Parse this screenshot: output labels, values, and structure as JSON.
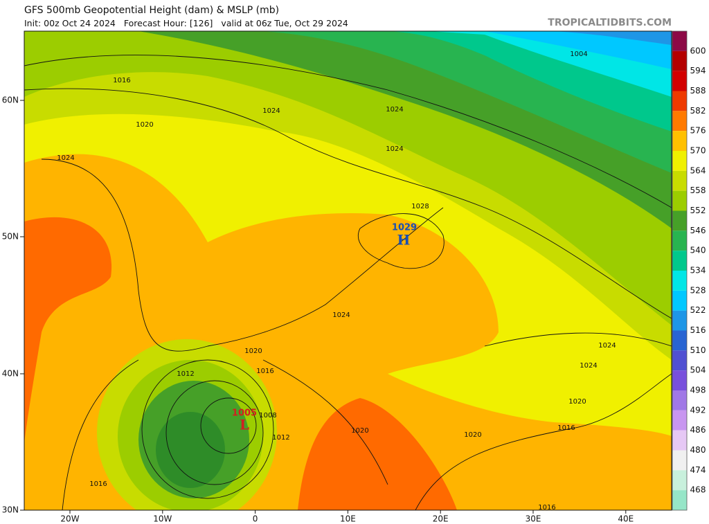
{
  "header": {
    "title": "GFS 500mb Geopotential Height (dam) & MSLP (mb)",
    "init": "Init: 00z Oct 24 2024",
    "forecast_hour": "Forecast Hour: [126]",
    "valid": "valid at 06z Tue, Oct 29 2024",
    "watermark": "TROPICALTIDBITS.COM"
  },
  "latitude_labels": [
    "60N",
    "50N",
    "40N",
    "30N"
  ],
  "longitude_labels": [
    "20W",
    "10W",
    "0",
    "10E",
    "20E",
    "30E",
    "40E"
  ],
  "contour_labels": [
    "1004",
    "1016",
    "1024",
    "1024",
    "1020",
    "1024",
    "1024",
    "1028",
    "1024",
    "1020",
    "1016",
    "1012",
    "1008",
    "1012",
    "1020",
    "1020",
    "1016",
    "1020",
    "1024",
    "1024",
    "1016",
    "1016"
  ],
  "pressure_centers": [
    {
      "value": "1029",
      "symbol": "H"
    },
    {
      "value": "1005",
      "symbol": "L"
    }
  ],
  "colorbar": {
    "cap_color": "#8c0a46",
    "levels": [
      {
        "label": "600",
        "color": "#b40000"
      },
      {
        "label": "594",
        "color": "#d20000"
      },
      {
        "label": "588",
        "color": "#ee3a00"
      },
      {
        "label": "582",
        "color": "#ff7a00"
      },
      {
        "label": "576",
        "color": "#ffc000"
      },
      {
        "label": "570",
        "color": "#f0f000"
      },
      {
        "label": "564",
        "color": "#c8dc00"
      },
      {
        "label": "558",
        "color": "#9ccd00"
      },
      {
        "label": "552",
        "color": "#46a028"
      },
      {
        "label": "546",
        "color": "#28b450"
      },
      {
        "label": "540",
        "color": "#00c88c"
      },
      {
        "label": "534",
        "color": "#00e6e6"
      },
      {
        "label": "528",
        "color": "#00c8ff"
      },
      {
        "label": "522",
        "color": "#1e96e6"
      },
      {
        "label": "516",
        "color": "#2864d2"
      },
      {
        "label": "510",
        "color": "#5050d2"
      },
      {
        "label": "504",
        "color": "#7850dc"
      },
      {
        "label": "498",
        "color": "#a078e6"
      },
      {
        "label": "492",
        "color": "#c896f0"
      },
      {
        "label": "486",
        "color": "#e6c8f5"
      },
      {
        "label": "480",
        "color": "#f0f0f0"
      },
      {
        "label": "474",
        "color": "#c8f0dc"
      },
      {
        "label": "468",
        "color": "#96e6c8"
      }
    ]
  }
}
